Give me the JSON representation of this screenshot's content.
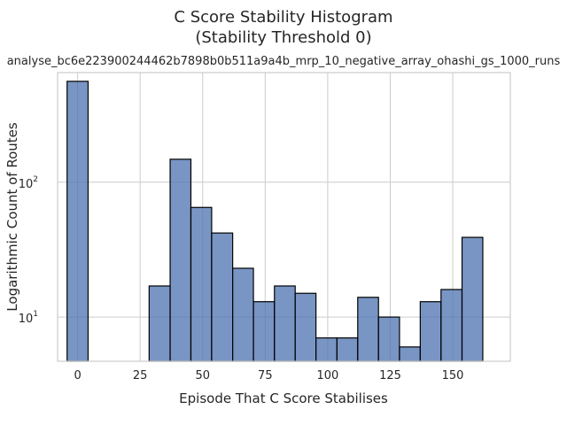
{
  "chart_data": {
    "type": "bar",
    "subtype": "histogram",
    "title_lines": [
      "C Score Stability Histogram",
      "(Stability Threshold 0)"
    ],
    "subtitle": "analyse_bc6e223900244462b7898b0b511a9a4b_mrp_10_negative_array_ohashi_gs_1000_runs",
    "xlabel": "Episode That C Score Stabilises",
    "ylabel": "Logarithmic Count of Routes",
    "yscale": "log",
    "xlim": [
      -8,
      173
    ],
    "ylim": [
      4.7,
      650
    ],
    "x_ticks": [
      0,
      25,
      50,
      75,
      100,
      125,
      150
    ],
    "x_tick_labels": [
      "0",
      "25",
      "50",
      "75",
      "100",
      "125",
      "150"
    ],
    "y_ticks": [
      10,
      100
    ],
    "y_tick_labels": [
      {
        "base": "10",
        "exp": "1"
      },
      {
        "base": "10",
        "exp": "2"
      }
    ],
    "bar_color": "#4c72b0",
    "bins": [
      {
        "start": -4.2,
        "end": 4.2,
        "count": 560
      },
      {
        "start": 28.6,
        "end": 37,
        "count": 17
      },
      {
        "start": 37,
        "end": 45.3,
        "count": 148
      },
      {
        "start": 45.3,
        "end": 53.6,
        "count": 65
      },
      {
        "start": 53.6,
        "end": 62,
        "count": 42
      },
      {
        "start": 62,
        "end": 70.3,
        "count": 23
      },
      {
        "start": 70.3,
        "end": 78.7,
        "count": 13
      },
      {
        "start": 78.7,
        "end": 87,
        "count": 17
      },
      {
        "start": 87,
        "end": 95.3,
        "count": 15
      },
      {
        "start": 95.3,
        "end": 103.7,
        "count": 7
      },
      {
        "start": 103.7,
        "end": 112,
        "count": 7
      },
      {
        "start": 112,
        "end": 120.3,
        "count": 14
      },
      {
        "start": 120.3,
        "end": 128.7,
        "count": 10
      },
      {
        "start": 128.7,
        "end": 137,
        "count": 6
      },
      {
        "start": 137,
        "end": 145.3,
        "count": 13
      },
      {
        "start": 145.3,
        "end": 153.7,
        "count": 16
      },
      {
        "start": 153.7,
        "end": 162,
        "count": 39
      }
    ]
  }
}
